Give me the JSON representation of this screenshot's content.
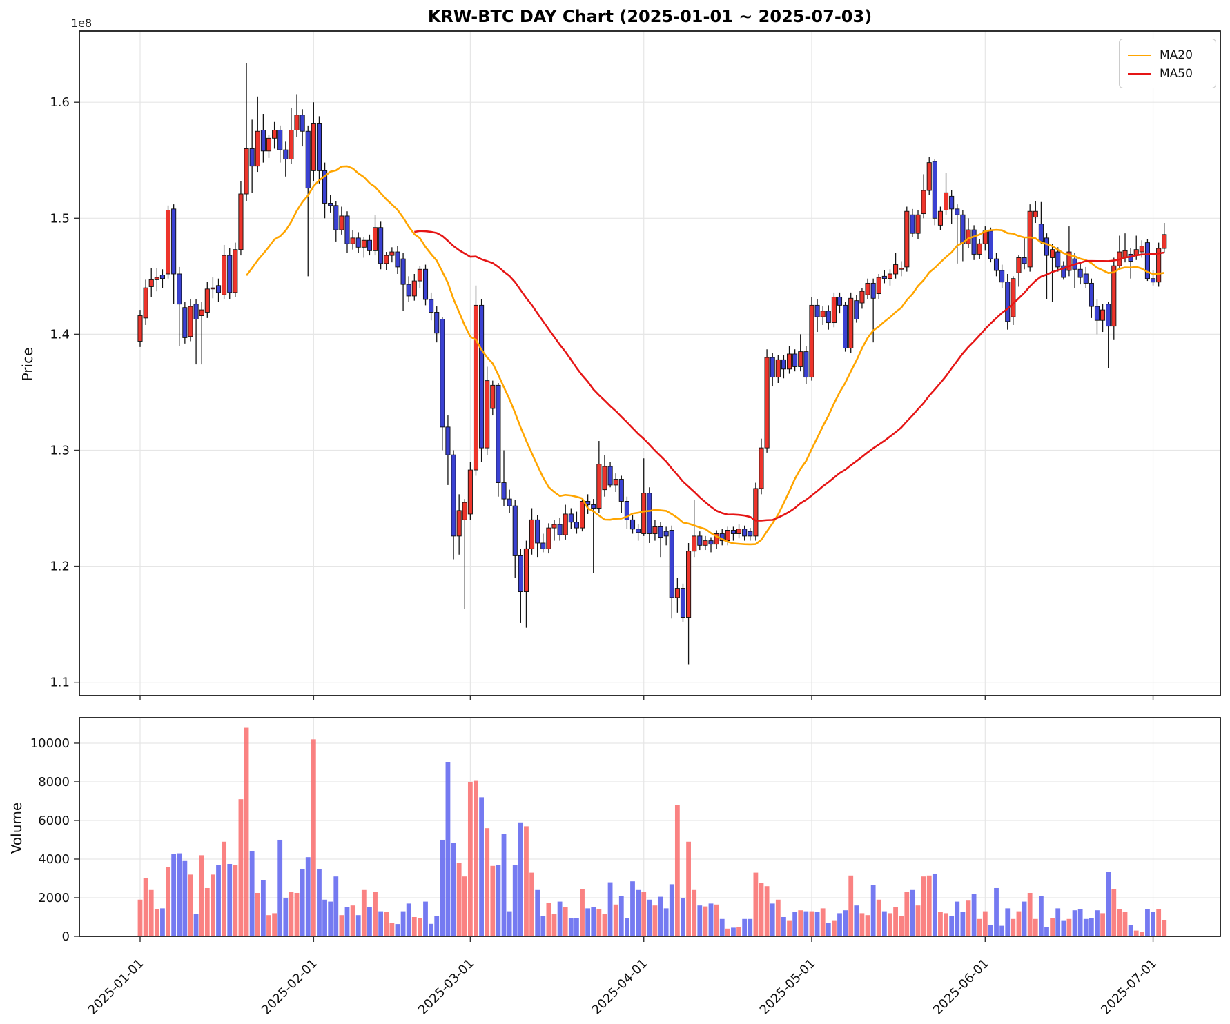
{
  "title": "KRW-BTC DAY Chart (2025-01-01 ~ 2025-07-03)",
  "legend": [
    {
      "label": "MA20",
      "color": "#ffa500",
      "window": 20
    },
    {
      "label": "MA50",
      "color": "#e51515",
      "window": 50
    }
  ],
  "chart_data": {
    "type": "candlestick_with_volume",
    "title": "KRW-BTC DAY Chart (2025-01-01 ~ 2025-07-03)",
    "start_date": "2025-01-01",
    "end_date": "2025-07-03",
    "price_unit": "1e8 KRW",
    "price_axis": {
      "label": "Price",
      "offset_label": "1e8",
      "ticks": [
        1.1,
        1.2,
        1.3,
        1.4,
        1.5,
        1.6
      ],
      "ylim": [
        1.0885,
        1.6614
      ]
    },
    "volume_axis": {
      "label": "Volume",
      "ticks": [
        0,
        2000,
        4000,
        6000,
        8000,
        10000
      ],
      "ylim": [
        0,
        11320
      ]
    },
    "x_ticks": [
      {
        "label": "2025-01-01",
        "index": 0
      },
      {
        "label": "2025-02-01",
        "index": 31
      },
      {
        "label": "2025-03-01",
        "index": 59
      },
      {
        "label": "2025-04-01",
        "index": 90
      },
      {
        "label": "2025-05-01",
        "index": 120
      },
      {
        "label": "2025-06-01",
        "index": 151
      },
      {
        "label": "2025-07-01",
        "index": 181
      }
    ],
    "colors": {
      "up_candle": "#ed342b",
      "down_candle": "#3a41d2",
      "up_volume": "#f96c6c",
      "down_volume": "#5d63ef",
      "wick": "#141414",
      "grid": "#e6e6e6",
      "spine": "#1a1a1a",
      "ma20": "#ffa500",
      "ma50": "#e51515"
    },
    "grid": true,
    "legend_position": "upper right",
    "ohlcv_fields": [
      "open",
      "high",
      "low",
      "close",
      "volume"
    ],
    "ohlcv": [
      [
        1.394,
        1.421,
        1.389,
        1.416,
        1900
      ],
      [
        1.414,
        1.447,
        1.408,
        1.44,
        3000
      ],
      [
        1.441,
        1.457,
        1.432,
        1.447,
        2400
      ],
      [
        1.447,
        1.457,
        1.437,
        1.449,
        1400
      ],
      [
        1.451,
        1.456,
        1.44,
        1.448,
        1450
      ],
      [
        1.452,
        1.511,
        1.448,
        1.507,
        3600
      ],
      [
        1.508,
        1.512,
        1.426,
        1.452,
        4250
      ],
      [
        1.452,
        1.458,
        1.39,
        1.426,
        4300
      ],
      [
        1.423,
        1.428,
        1.392,
        1.397,
        3900
      ],
      [
        1.398,
        1.43,
        1.394,
        1.424,
        3200
      ],
      [
        1.426,
        1.43,
        1.374,
        1.413,
        1150
      ],
      [
        1.416,
        1.428,
        1.374,
        1.421,
        4200
      ],
      [
        1.419,
        1.445,
        1.414,
        1.439,
        2500
      ],
      [
        1.44,
        1.449,
        1.431,
        1.44,
        3200
      ],
      [
        1.442,
        1.448,
        1.428,
        1.436,
        3700
      ],
      [
        1.434,
        1.477,
        1.43,
        1.468,
        4900
      ],
      [
        1.468,
        1.474,
        1.43,
        1.436,
        3750
      ],
      [
        1.436,
        1.479,
        1.432,
        1.473,
        3700
      ],
      [
        1.473,
        1.532,
        1.468,
        1.521,
        7100
      ],
      [
        1.521,
        1.634,
        1.515,
        1.56,
        10800
      ],
      [
        1.56,
        1.585,
        1.522,
        1.545,
        4400
      ],
      [
        1.545,
        1.605,
        1.54,
        1.575,
        2250
      ],
      [
        1.576,
        1.59,
        1.548,
        1.558,
        2900
      ],
      [
        1.558,
        1.572,
        1.552,
        1.569,
        1100
      ],
      [
        1.569,
        1.583,
        1.56,
        1.576,
        1200
      ],
      [
        1.576,
        1.58,
        1.548,
        1.559,
        5000
      ],
      [
        1.559,
        1.566,
        1.536,
        1.551,
        2000
      ],
      [
        1.551,
        1.595,
        1.547,
        1.576,
        2300
      ],
      [
        1.576,
        1.607,
        1.57,
        1.589,
        2250
      ],
      [
        1.589,
        1.594,
        1.562,
        1.575,
        3500
      ],
      [
        1.575,
        1.58,
        1.45,
        1.526,
        4100
      ],
      [
        1.541,
        1.6,
        1.532,
        1.582,
        10200
      ],
      [
        1.582,
        1.588,
        1.53,
        1.541,
        3500
      ],
      [
        1.541,
        1.548,
        1.5,
        1.513,
        1900
      ],
      [
        1.513,
        1.52,
        1.505,
        1.511,
        1800
      ],
      [
        1.511,
        1.515,
        1.48,
        1.49,
        3100
      ],
      [
        1.49,
        1.51,
        1.486,
        1.502,
        1100
      ],
      [
        1.502,
        1.506,
        1.47,
        1.478,
        1500
      ],
      [
        1.478,
        1.49,
        1.473,
        1.483,
        1600
      ],
      [
        1.483,
        1.488,
        1.47,
        1.475,
        1100
      ],
      [
        1.475,
        1.484,
        1.466,
        1.481,
        2400
      ],
      [
        1.481,
        1.486,
        1.468,
        1.472,
        1500
      ],
      [
        1.472,
        1.503,
        1.468,
        1.492,
        2300
      ],
      [
        1.492,
        1.497,
        1.456,
        1.461,
        1300
      ],
      [
        1.461,
        1.471,
        1.455,
        1.468,
        1250
      ],
      [
        1.468,
        1.475,
        1.462,
        1.471,
        700
      ],
      [
        1.471,
        1.476,
        1.452,
        1.458,
        640
      ],
      [
        1.465,
        1.47,
        1.42,
        1.443,
        1300
      ],
      [
        1.443,
        1.45,
        1.428,
        1.433,
        1700
      ],
      [
        1.433,
        1.452,
        1.429,
        1.446,
        1000
      ],
      [
        1.446,
        1.459,
        1.44,
        1.456,
        950
      ],
      [
        1.456,
        1.46,
        1.425,
        1.43,
        1800
      ],
      [
        1.43,
        1.436,
        1.412,
        1.419,
        650
      ],
      [
        1.419,
        1.424,
        1.393,
        1.401,
        1050
      ],
      [
        1.413,
        1.415,
        1.3,
        1.32,
        5000
      ],
      [
        1.32,
        1.33,
        1.27,
        1.296,
        9000
      ],
      [
        1.296,
        1.3,
        1.206,
        1.226,
        4850
      ],
      [
        1.226,
        1.262,
        1.21,
        1.248,
        3800
      ],
      [
        1.24,
        1.258,
        1.163,
        1.255,
        3100
      ],
      [
        1.245,
        1.29,
        1.24,
        1.283,
        8000
      ],
      [
        1.283,
        1.442,
        1.278,
        1.425,
        8050
      ],
      [
        1.425,
        1.43,
        1.29,
        1.302,
        7200
      ],
      [
        1.302,
        1.372,
        1.296,
        1.36,
        5600
      ],
      [
        1.336,
        1.36,
        1.33,
        1.356,
        3650
      ],
      [
        1.356,
        1.358,
        1.26,
        1.272,
        3700
      ],
      [
        1.272,
        1.3,
        1.252,
        1.258,
        5300
      ],
      [
        1.258,
        1.266,
        1.246,
        1.252,
        1300
      ],
      [
        1.252,
        1.257,
        1.19,
        1.209,
        3700
      ],
      [
        1.209,
        1.215,
        1.151,
        1.178,
        5900
      ],
      [
        1.178,
        1.222,
        1.147,
        1.215,
        5700
      ],
      [
        1.215,
        1.25,
        1.21,
        1.24,
        3300
      ],
      [
        1.24,
        1.244,
        1.208,
        1.22,
        2400
      ],
      [
        1.22,
        1.228,
        1.212,
        1.215,
        1050
      ],
      [
        1.215,
        1.237,
        1.211,
        1.233,
        1750
      ],
      [
        1.233,
        1.24,
        1.222,
        1.236,
        1150
      ],
      [
        1.236,
        1.242,
        1.222,
        1.227,
        1800
      ],
      [
        1.227,
        1.253,
        1.223,
        1.245,
        1500
      ],
      [
        1.245,
        1.25,
        1.232,
        1.238,
        950
      ],
      [
        1.238,
        1.247,
        1.228,
        1.233,
        950
      ],
      [
        1.233,
        1.258,
        1.23,
        1.256,
        2450
      ],
      [
        1.256,
        1.262,
        1.245,
        1.253,
        1450
      ],
      [
        1.253,
        1.258,
        1.194,
        1.25,
        1500
      ],
      [
        1.25,
        1.308,
        1.246,
        1.288,
        1400
      ],
      [
        1.266,
        1.296,
        1.26,
        1.286,
        1150
      ],
      [
        1.286,
        1.29,
        1.268,
        1.27,
        2800
      ],
      [
        1.27,
        1.28,
        1.264,
        1.275,
        1650
      ],
      [
        1.275,
        1.278,
        1.246,
        1.256,
        2100
      ],
      [
        1.256,
        1.26,
        1.232,
        1.24,
        950
      ],
      [
        1.24,
        1.244,
        1.228,
        1.232,
        2850
      ],
      [
        1.232,
        1.236,
        1.222,
        1.229,
        2400
      ],
      [
        1.228,
        1.293,
        1.226,
        1.263,
        2300
      ],
      [
        1.263,
        1.268,
        1.22,
        1.228,
        1900
      ],
      [
        1.228,
        1.24,
        1.222,
        1.234,
        1600
      ],
      [
        1.234,
        1.238,
        1.208,
        1.225,
        2050
      ],
      [
        1.23,
        1.234,
        1.218,
        1.226,
        1450
      ],
      [
        1.231,
        1.235,
        1.155,
        1.173,
        2700
      ],
      [
        1.173,
        1.19,
        1.16,
        1.181,
        6800
      ],
      [
        1.181,
        1.185,
        1.152,
        1.156,
        2000
      ],
      [
        1.156,
        1.22,
        1.115,
        1.213,
        4900
      ],
      [
        1.213,
        1.257,
        1.208,
        1.226,
        2400
      ],
      [
        1.226,
        1.23,
        1.214,
        1.218,
        1600
      ],
      [
        1.218,
        1.226,
        1.214,
        1.222,
        1550
      ],
      [
        1.222,
        1.225,
        1.212,
        1.219,
        1700
      ],
      [
        1.219,
        1.231,
        1.215,
        1.228,
        1650
      ],
      [
        1.228,
        1.232,
        1.218,
        1.222,
        900
      ],
      [
        1.222,
        1.234,
        1.218,
        1.231,
        400
      ],
      [
        1.231,
        1.234,
        1.222,
        1.228,
        450
      ],
      [
        1.228,
        1.236,
        1.224,
        1.232,
        500
      ],
      [
        1.232,
        1.235,
        1.222,
        1.226,
        900
      ],
      [
        1.23,
        1.233,
        1.222,
        1.226,
        900
      ],
      [
        1.226,
        1.272,
        1.222,
        1.267,
        3300
      ],
      [
        1.267,
        1.31,
        1.262,
        1.302,
        2750
      ],
      [
        1.302,
        1.387,
        1.298,
        1.38,
        2600
      ],
      [
        1.38,
        1.384,
        1.355,
        1.363,
        1700
      ],
      [
        1.363,
        1.382,
        1.358,
        1.378,
        1900
      ],
      [
        1.378,
        1.382,
        1.362,
        1.37,
        1000
      ],
      [
        1.37,
        1.39,
        1.366,
        1.383,
        800
      ],
      [
        1.383,
        1.387,
        1.368,
        1.372,
        1250
      ],
      [
        1.372,
        1.4,
        1.368,
        1.385,
        1350
      ],
      [
        1.385,
        1.39,
        1.357,
        1.363,
        1300
      ],
      [
        1.363,
        1.432,
        1.36,
        1.425,
        1300
      ],
      [
        1.425,
        1.43,
        1.402,
        1.415,
        1250
      ],
      [
        1.415,
        1.424,
        1.408,
        1.42,
        1450
      ],
      [
        1.42,
        1.425,
        1.404,
        1.41,
        700
      ],
      [
        1.41,
        1.436,
        1.406,
        1.432,
        800
      ],
      [
        1.432,
        1.436,
        1.418,
        1.425,
        1200
      ],
      [
        1.425,
        1.428,
        1.385,
        1.388,
        1350
      ],
      [
        1.388,
        1.436,
        1.384,
        1.431,
        3150
      ],
      [
        1.429,
        1.434,
        1.41,
        1.413,
        1600
      ],
      [
        1.427,
        1.44,
        1.422,
        1.437,
        1200
      ],
      [
        1.434,
        1.448,
        1.43,
        1.444,
        1100
      ],
      [
        1.444,
        1.448,
        1.393,
        1.431,
        2650
      ],
      [
        1.435,
        1.452,
        1.43,
        1.449,
        1900
      ],
      [
        1.45,
        1.455,
        1.444,
        1.448,
        1300
      ],
      [
        1.448,
        1.456,
        1.442,
        1.452,
        1200
      ],
      [
        1.452,
        1.47,
        1.448,
        1.46,
        1500
      ],
      [
        1.457,
        1.463,
        1.45,
        1.457,
        1050
      ],
      [
        1.458,
        1.51,
        1.454,
        1.506,
        2300
      ],
      [
        1.503,
        1.508,
        1.484,
        1.487,
        2400
      ],
      [
        1.487,
        1.507,
        1.482,
        1.503,
        1600
      ],
      [
        1.504,
        1.538,
        1.5,
        1.524,
        3100
      ],
      [
        1.524,
        1.553,
        1.52,
        1.548,
        3150
      ],
      [
        1.549,
        1.551,
        1.494,
        1.5,
        3250
      ],
      [
        1.494,
        1.51,
        1.49,
        1.506,
        1250
      ],
      [
        1.507,
        1.539,
        1.503,
        1.522,
        1200
      ],
      [
        1.519,
        1.524,
        1.495,
        1.508,
        1050
      ],
      [
        1.508,
        1.512,
        1.461,
        1.503,
        1800
      ],
      [
        1.503,
        1.507,
        1.463,
        1.478,
        1250
      ],
      [
        1.478,
        1.5,
        1.474,
        1.49,
        1850
      ],
      [
        1.49,
        1.494,
        1.464,
        1.469,
        2200
      ],
      [
        1.469,
        1.482,
        1.465,
        1.478,
        900
      ],
      [
        1.478,
        1.493,
        1.472,
        1.489,
        1300
      ],
      [
        1.489,
        1.492,
        1.462,
        1.465,
        600
      ],
      [
        1.465,
        1.47,
        1.45,
        1.455,
        2500
      ],
      [
        1.455,
        1.46,
        1.44,
        1.445,
        550
      ],
      [
        1.445,
        1.452,
        1.404,
        1.411,
        1450
      ],
      [
        1.415,
        1.45,
        1.408,
        1.448,
        900
      ],
      [
        1.453,
        1.468,
        1.441,
        1.466,
        1300
      ],
      [
        1.466,
        1.484,
        1.456,
        1.461,
        1800
      ],
      [
        1.458,
        1.512,
        1.454,
        1.506,
        2250
      ],
      [
        1.501,
        1.515,
        1.496,
        1.506,
        900
      ],
      [
        1.495,
        1.514,
        1.478,
        1.48,
        2100
      ],
      [
        1.483,
        1.487,
        1.43,
        1.468,
        500
      ],
      [
        1.466,
        1.478,
        1.428,
        1.473,
        950
      ],
      [
        1.471,
        1.475,
        1.454,
        1.458,
        1450
      ],
      [
        1.459,
        1.463,
        1.447,
        1.449,
        800
      ],
      [
        1.455,
        1.493,
        1.45,
        1.471,
        900
      ],
      [
        1.465,
        1.47,
        1.44,
        1.456,
        1350
      ],
      [
        1.456,
        1.461,
        1.443,
        1.449,
        1400
      ],
      [
        1.452,
        1.458,
        1.44,
        1.444,
        900
      ],
      [
        1.444,
        1.448,
        1.414,
        1.424,
        950
      ],
      [
        1.424,
        1.43,
        1.4,
        1.412,
        1350
      ],
      [
        1.412,
        1.426,
        1.402,
        1.421,
        1200
      ],
      [
        1.426,
        1.428,
        1.371,
        1.407,
        3350
      ],
      [
        1.407,
        1.466,
        1.395,
        1.459,
        2450
      ],
      [
        1.459,
        1.485,
        1.455,
        1.471,
        1400
      ],
      [
        1.466,
        1.487,
        1.462,
        1.472,
        1250
      ],
      [
        1.469,
        1.474,
        1.448,
        1.463,
        600
      ],
      [
        1.468,
        1.485,
        1.464,
        1.473,
        300
      ],
      [
        1.471,
        1.481,
        1.466,
        1.476,
        250
      ],
      [
        1.479,
        1.482,
        1.446,
        1.448,
        1400
      ],
      [
        1.448,
        1.455,
        1.442,
        1.445,
        1250
      ],
      [
        1.445,
        1.479,
        1.441,
        1.474,
        1400
      ],
      [
        1.474,
        1.496,
        1.47,
        1.486,
        850
      ]
    ]
  }
}
